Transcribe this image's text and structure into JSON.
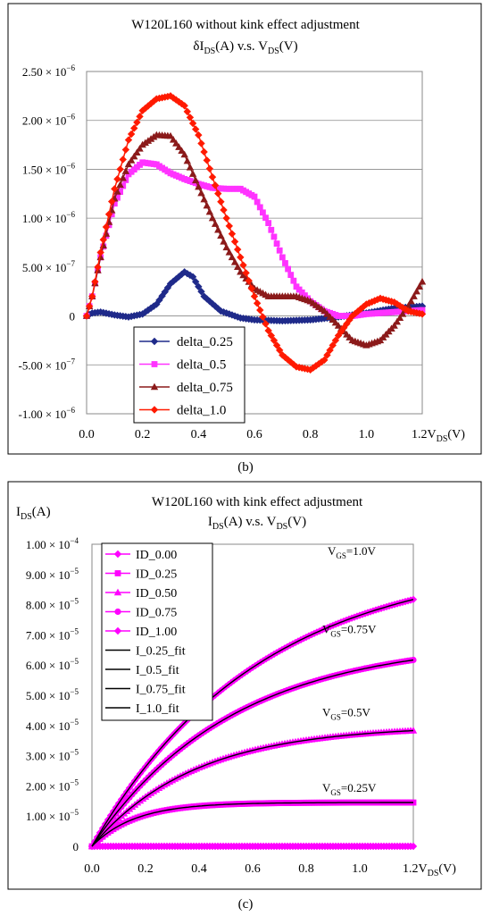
{
  "panel_b_label": "(b)",
  "panel_c_label": "(c)",
  "chart_data": [
    {
      "type": "line",
      "title": "W120L160 without kink effect adjustment",
      "subtitle": {
        "delta": "δI",
        "sub1": "DS",
        "mid": "(A) v.s. V",
        "sub2": "DS",
        "end": "(V)"
      },
      "xlabel": {
        "main": "V",
        "sub": "DS",
        "end": "(V)"
      },
      "ylabel": "",
      "xlim": [
        0,
        1.2
      ],
      "ylim": [
        -1e-06,
        2.5e-06
      ],
      "x_ticks": [
        0,
        0.2,
        0.4,
        0.6,
        0.8,
        1.0,
        1.2
      ],
      "x_tick_labels": [
        "0.0",
        "0.2",
        "0.4",
        "0.6",
        "0.8",
        "1.0",
        "1.2"
      ],
      "y_ticks": [
        2.5e-06,
        2e-06,
        1.5e-06,
        1e-06,
        5e-07,
        0,
        -5e-07,
        -1e-06
      ],
      "y_tick_labels": [
        {
          "m": "2.50 × 10",
          "e": "−6"
        },
        {
          "m": "2.00 × 10",
          "e": "−6"
        },
        {
          "m": "1.50 × 10",
          "e": "−6"
        },
        {
          "m": "1.00 × 10",
          "e": "−6"
        },
        {
          "m": "5.00 × 10",
          "e": "−7"
        },
        {
          "m": "0",
          "e": ""
        },
        {
          "m": "-5.00 × 10",
          "e": "−7"
        },
        {
          "m": "-1.00 × 10",
          "e": "−6"
        }
      ],
      "grid": "horizontal",
      "legend_position": "bottom-left",
      "series": [
        {
          "name": "delta_0.25",
          "color": "#1f2a8a",
          "marker": "diamond",
          "points": [
            [
              0,
              0
            ],
            [
              0.02,
              3e-08
            ],
            [
              0.05,
              4e-08
            ],
            [
              0.1,
              1e-08
            ],
            [
              0.15,
              -1e-08
            ],
            [
              0.2,
              2e-08
            ],
            [
              0.25,
              1.2e-07
            ],
            [
              0.3,
              3.3e-07
            ],
            [
              0.35,
              4.5e-07
            ],
            [
              0.38,
              4e-07
            ],
            [
              0.42,
              2e-07
            ],
            [
              0.48,
              5e-08
            ],
            [
              0.55,
              -2e-08
            ],
            [
              0.6,
              -4e-08
            ],
            [
              0.7,
              -5e-08
            ],
            [
              0.8,
              -4e-08
            ],
            [
              0.9,
              -1e-08
            ],
            [
              1.0,
              3e-08
            ],
            [
              1.1,
              8e-08
            ],
            [
              1.2,
              1e-07
            ]
          ]
        },
        {
          "name": "delta_0.5",
          "color": "#ff33ff",
          "marker": "square",
          "points": [
            [
              0,
              0
            ],
            [
              0.02,
              2e-07
            ],
            [
              0.05,
              6e-07
            ],
            [
              0.1,
              1.15e-06
            ],
            [
              0.15,
              1.45e-06
            ],
            [
              0.2,
              1.57e-06
            ],
            [
              0.25,
              1.55e-06
            ],
            [
              0.3,
              1.46e-06
            ],
            [
              0.35,
              1.4e-06
            ],
            [
              0.4,
              1.35e-06
            ],
            [
              0.45,
              1.31e-06
            ],
            [
              0.5,
              1.3e-06
            ],
            [
              0.55,
              1.3e-06
            ],
            [
              0.6,
              1.22e-06
            ],
            [
              0.65,
              9.5e-07
            ],
            [
              0.7,
              6e-07
            ],
            [
              0.75,
              3e-07
            ],
            [
              0.8,
              1.5e-07
            ],
            [
              0.85,
              5e-08
            ],
            [
              0.9,
              0
            ],
            [
              0.95,
              0
            ],
            [
              1.0,
              2e-08
            ],
            [
              1.1,
              4e-08
            ],
            [
              1.2,
              6e-08
            ]
          ]
        },
        {
          "name": "delta_0.75",
          "color": "#8b1a1a",
          "marker": "triangle",
          "points": [
            [
              0,
              0
            ],
            [
              0.02,
              2e-07
            ],
            [
              0.05,
              6e-07
            ],
            [
              0.1,
              1.2e-06
            ],
            [
              0.15,
              1.55e-06
            ],
            [
              0.2,
              1.75e-06
            ],
            [
              0.25,
              1.85e-06
            ],
            [
              0.3,
              1.84e-06
            ],
            [
              0.35,
              1.65e-06
            ],
            [
              0.4,
              1.32e-06
            ],
            [
              0.45,
              1e-06
            ],
            [
              0.5,
              7e-07
            ],
            [
              0.55,
              4.5e-07
            ],
            [
              0.6,
              2.8e-07
            ],
            [
              0.65,
              2e-07
            ],
            [
              0.7,
              2e-07
            ],
            [
              0.75,
              2e-07
            ],
            [
              0.8,
              1.5e-07
            ],
            [
              0.85,
              5e-08
            ],
            [
              0.9,
              -1e-07
            ],
            [
              0.95,
              -2.5e-07
            ],
            [
              1.0,
              -3e-07
            ],
            [
              1.05,
              -2.5e-07
            ],
            [
              1.1,
              -1e-07
            ],
            [
              1.15,
              1e-07
            ],
            [
              1.2,
              3.5e-07
            ]
          ]
        },
        {
          "name": "delta_1.0",
          "color": "#ff1a00",
          "marker": "diamond",
          "points": [
            [
              0,
              0
            ],
            [
              0.02,
              2e-07
            ],
            [
              0.05,
              6.5e-07
            ],
            [
              0.1,
              1.3e-06
            ],
            [
              0.15,
              1.8e-06
            ],
            [
              0.2,
              2.1e-06
            ],
            [
              0.25,
              2.22e-06
            ],
            [
              0.3,
              2.25e-06
            ],
            [
              0.35,
              2.15e-06
            ],
            [
              0.4,
              1.85e-06
            ],
            [
              0.45,
              1.42e-06
            ],
            [
              0.5,
              1e-06
            ],
            [
              0.55,
              6e-07
            ],
            [
              0.6,
              2e-07
            ],
            [
              0.65,
              -1.5e-07
            ],
            [
              0.7,
              -4e-07
            ],
            [
              0.75,
              -5.2e-07
            ],
            [
              0.8,
              -5.5e-07
            ],
            [
              0.85,
              -4.5e-07
            ],
            [
              0.9,
              -2e-07
            ],
            [
              0.95,
              0
            ],
            [
              1.0,
              1.2e-07
            ],
            [
              1.05,
              1.8e-07
            ],
            [
              1.1,
              1.4e-07
            ],
            [
              1.15,
              5e-08
            ],
            [
              1.2,
              2e-08
            ]
          ]
        }
      ]
    },
    {
      "type": "line",
      "title": "W120L160 with kink effect adjustment",
      "subtitle": {
        "a": "I",
        "sub1": "DS",
        "mid": "(A) v.s. V",
        "sub2": "DS",
        "end": "(V)"
      },
      "ylabel": {
        "main": "I",
        "sub": "DS",
        "end": "(A)"
      },
      "xlabel": {
        "main": "V",
        "sub": "DS",
        "end": "(V)"
      },
      "xlim": [
        0,
        1.2
      ],
      "ylim": [
        0,
        0.0001
      ],
      "x_ticks": [
        0,
        0.2,
        0.4,
        0.6,
        0.8,
        1.0,
        1.2
      ],
      "x_tick_labels": [
        "0.0",
        "0.2",
        "0.4",
        "0.6",
        "0.8",
        "1.0",
        "1.2"
      ],
      "y_ticks": [
        0.0001,
        9e-05,
        8e-05,
        7e-05,
        6e-05,
        5e-05,
        4e-05,
        3e-05,
        2e-05,
        1e-05,
        0
      ],
      "y_tick_labels": [
        {
          "m": "1.00 × 10",
          "e": "−4"
        },
        {
          "m": "9.00 × 10",
          "e": "−5"
        },
        {
          "m": "8.00 × 10",
          "e": "−5"
        },
        {
          "m": "7.00 × 10",
          "e": "−5"
        },
        {
          "m": "6.00 × 10",
          "e": "−5"
        },
        {
          "m": "5.00 × 10",
          "e": "−5"
        },
        {
          "m": "4.00 × 10",
          "e": "−5"
        },
        {
          "m": "3.00 × 10",
          "e": "−5"
        },
        {
          "m": "2.00 × 10",
          "e": "−5"
        },
        {
          "m": "1.00 × 10",
          "e": "−5"
        },
        {
          "m": "0",
          "e": ""
        }
      ],
      "grid": "none",
      "legend_position": "top-left",
      "curve_labels": [
        {
          "main": "V",
          "sub": "GS",
          "end": "=1.0V",
          "x": 0.88,
          "y": 9.65e-05
        },
        {
          "main": "V",
          "sub": "GS",
          "end": "=0.75V",
          "x": 0.86,
          "y": 7.05e-05
        },
        {
          "main": "V",
          "sub": "GS",
          "end": "=0.5V",
          "x": 0.86,
          "y": 4.3e-05
        },
        {
          "main": "V",
          "sub": "GS",
          "end": "=0.25V",
          "x": 0.86,
          "y": 1.8e-05
        }
      ],
      "series": [
        {
          "name": "ID_0.00",
          "color": "#ff00ff",
          "marker": "diamond",
          "isat": 0,
          "vsat": 0.1
        },
        {
          "name": "ID_0.25",
          "color": "#ff00ff",
          "marker": "square",
          "isat": 1.45e-05,
          "vsat": 0.16
        },
        {
          "name": "ID_0.50",
          "color": "#ff00ff",
          "marker": "triangle",
          "isat": 4e-05,
          "vsat": 0.38
        },
        {
          "name": "ID_0.75",
          "color": "#ff00ff",
          "marker": "circle",
          "isat": 6.85e-05,
          "vsat": 0.52
        },
        {
          "name": "ID_1.00",
          "color": "#ff00ff",
          "marker": "diamond",
          "isat": 9.55e-05,
          "vsat": 0.62
        },
        {
          "name": "I_0.25_fit",
          "color": "#000000",
          "marker": "dash",
          "isat": 1.45e-05,
          "vsat": 0.16
        },
        {
          "name": "I_0.5_fit",
          "color": "#000000",
          "marker": "dash",
          "isat": 4e-05,
          "vsat": 0.38
        },
        {
          "name": "I_0.75_fit",
          "color": "#000000",
          "marker": "dash",
          "isat": 6.85e-05,
          "vsat": 0.52
        },
        {
          "name": "I_1.0_fit",
          "color": "#000000",
          "marker": "dash",
          "isat": 9.55e-05,
          "vsat": 0.62
        }
      ]
    }
  ]
}
